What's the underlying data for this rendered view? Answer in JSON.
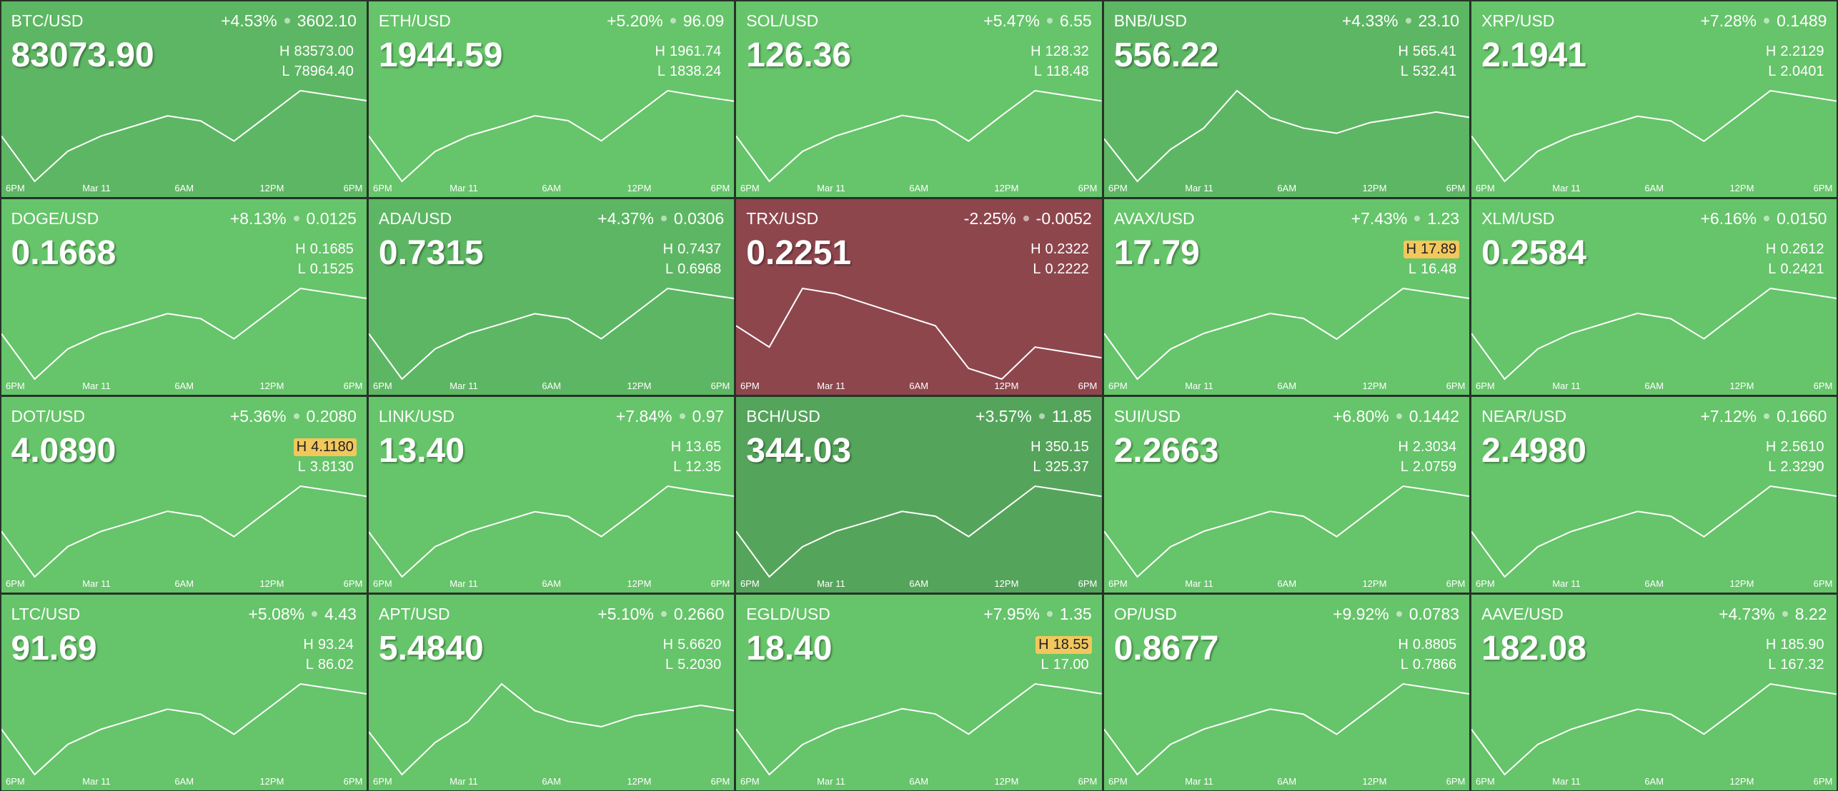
{
  "labels": {
    "high": "H",
    "low": "L"
  },
  "time_labels": [
    "6PM",
    "Mar 11",
    "6AM",
    "12PM",
    "6PM"
  ],
  "tiles": [
    {
      "pair": "BTC/USD",
      "change_pct": "+4.53%",
      "change": "3602.10",
      "price": "83073.90",
      "high": "83573.00",
      "low": "78964.40",
      "color": "#5db663",
      "highlight": false,
      "sparkline": [
        81268,
        79195,
        80577,
        81268,
        81730,
        82191,
        81960,
        81038,
        82191,
        83343,
        83112,
        82882
      ]
    },
    {
      "pair": "ETH/USD",
      "change_pct": "+5.20%",
      "change": "96.09",
      "price": "1944.59",
      "high": "1961.74",
      "low": "1838.24",
      "color": "#66c46a",
      "highlight": false,
      "sparkline": [
        1900,
        1844,
        1881,
        1900,
        1912,
        1925,
        1919,
        1894,
        1925,
        1956,
        1949,
        1943
      ]
    },
    {
      "pair": "SOL/USD",
      "change_pct": "+5.47%",
      "change": "6.55",
      "price": "126.36",
      "high": "128.32",
      "low": "118.48",
      "color": "#66c46a",
      "highlight": false,
      "sparkline": [
        123.4,
        119.0,
        121.9,
        123.4,
        124.4,
        125.4,
        124.9,
        122.9,
        125.4,
        127.8,
        127.3,
        126.8
      ]
    },
    {
      "pair": "BNB/USD",
      "change_pct": "+4.33%",
      "change": "23.10",
      "price": "556.22",
      "high": "565.41",
      "low": "532.41",
      "color": "#5db663",
      "highlight": false,
      "sparkline": [
        548.9,
        535.7,
        545.6,
        552.2,
        563.8,
        555.5,
        552.2,
        550.6,
        553.9,
        555.5,
        557.2,
        555.5
      ]
    },
    {
      "pair": "XRP/USD",
      "change_pct": "+7.28%",
      "change": "0.1489",
      "price": "2.1941",
      "high": "2.2129",
      "low": "2.0401",
      "color": "#66c46a",
      "highlight": false,
      "sparkline": [
        2.127,
        2.049,
        2.101,
        2.127,
        2.144,
        2.161,
        2.153,
        2.118,
        2.161,
        2.205,
        2.196,
        2.187
      ]
    },
    {
      "pair": "DOGE/USD",
      "change_pct": "+8.13%",
      "change": "0.0125",
      "price": "0.1668",
      "high": "0.1685",
      "low": "0.1525",
      "color": "#66c46a",
      "highlight": false,
      "sparkline": [
        0.1605,
        0.1533,
        0.1581,
        0.1605,
        0.1621,
        0.1637,
        0.1629,
        0.1597,
        0.1637,
        0.1677,
        0.1669,
        0.1661
      ]
    },
    {
      "pair": "ADA/USD",
      "change_pct": "+4.37%",
      "change": "0.0306",
      "price": "0.7315",
      "high": "0.7437",
      "low": "0.6968",
      "color": "#5db663",
      "highlight": false,
      "sparkline": [
        0.7203,
        0.6991,
        0.7132,
        0.7203,
        0.7249,
        0.7296,
        0.7273,
        0.7179,
        0.7296,
        0.7414,
        0.739,
        0.7367
      ]
    },
    {
      "pair": "TRX/USD",
      "change_pct": "-2.25%",
      "change": "-0.0052",
      "price": "0.2251",
      "high": "0.2322",
      "low": "0.2222",
      "color": "#8e464d",
      "highlight": false,
      "sparkline": [
        0.2272,
        0.2252,
        0.2307,
        0.2302,
        0.2292,
        0.2282,
        0.2272,
        0.2232,
        0.2222,
        0.2252,
        0.2247,
        0.2242
      ]
    },
    {
      "pair": "AVAX/USD",
      "change_pct": "+7.43%",
      "change": "1.23",
      "price": "17.79",
      "high": "17.89",
      "low": "16.48",
      "color": "#66c46a",
      "highlight": true,
      "sparkline": [
        17.19,
        16.55,
        16.97,
        17.19,
        17.33,
        17.47,
        17.4,
        17.11,
        17.47,
        17.82,
        17.75,
        17.68
      ]
    },
    {
      "pair": "XLM/USD",
      "change_pct": "+6.16%",
      "change": "0.0150",
      "price": "0.2584",
      "high": "0.2612",
      "low": "0.2421",
      "color": "#66c46a",
      "highlight": false,
      "sparkline": [
        0.2517,
        0.2431,
        0.2488,
        0.2517,
        0.2536,
        0.2555,
        0.2545,
        0.2507,
        0.2555,
        0.2602,
        0.2593,
        0.2583
      ]
    },
    {
      "pair": "DOT/USD",
      "change_pct": "+5.36%",
      "change": "0.2080",
      "price": "4.0890",
      "high": "4.1180",
      "low": "3.8130",
      "color": "#66c46a",
      "highlight": true,
      "sparkline": [
        3.966,
        3.828,
        3.92,
        3.966,
        3.996,
        4.027,
        4.011,
        3.95,
        4.027,
        4.103,
        4.088,
        4.072
      ]
    },
    {
      "pair": "LINK/USD",
      "change_pct": "+7.84%",
      "change": "0.97",
      "price": "13.40",
      "high": "13.65",
      "low": "12.35",
      "color": "#66c46a",
      "highlight": false,
      "sparkline": [
        13.0,
        12.42,
        12.81,
        13.0,
        13.13,
        13.26,
        13.2,
        12.94,
        13.26,
        13.59,
        13.52,
        13.46
      ]
    },
    {
      "pair": "BCH/USD",
      "change_pct": "+3.57%",
      "change": "11.85",
      "price": "344.03",
      "high": "350.15",
      "low": "325.37",
      "color": "#55a45b",
      "highlight": false,
      "sparkline": [
        337.8,
        326.6,
        334.0,
        337.8,
        340.2,
        342.7,
        341.5,
        336.5,
        342.7,
        348.9,
        347.7,
        346.4
      ]
    },
    {
      "pair": "SUI/USD",
      "change_pct": "+6.80%",
      "change": "0.1442",
      "price": "2.2663",
      "high": "2.3034",
      "low": "2.0759",
      "color": "#66c46a",
      "highlight": false,
      "sparkline": [
        2.19,
        2.087,
        2.155,
        2.19,
        2.212,
        2.235,
        2.224,
        2.178,
        2.235,
        2.292,
        2.281,
        2.269
      ]
    },
    {
      "pair": "NEAR/USD",
      "change_pct": "+7.12%",
      "change": "0.1660",
      "price": "2.4980",
      "high": "2.5610",
      "low": "2.3290",
      "color": "#66c46a",
      "highlight": false,
      "sparkline": [
        2.445,
        2.341,
        2.41,
        2.445,
        2.468,
        2.491,
        2.48,
        2.433,
        2.491,
        2.549,
        2.538,
        2.526
      ]
    },
    {
      "pair": "LTC/USD",
      "change_pct": "+5.08%",
      "change": "4.43",
      "price": "91.69",
      "high": "93.24",
      "low": "86.02",
      "color": "#66c46a",
      "highlight": false,
      "sparkline": [
        89.63,
        86.38,
        88.55,
        89.63,
        90.35,
        91.07,
        90.71,
        89.27,
        91.07,
        92.88,
        92.52,
        92.16
      ]
    },
    {
      "pair": "APT/USD",
      "change_pct": "+5.10%",
      "change": "0.2660",
      "price": "5.4840",
      "high": "5.6620",
      "low": "5.2030",
      "color": "#66c46a",
      "highlight": false,
      "sparkline": [
        5.433,
        5.249,
        5.387,
        5.478,
        5.639,
        5.524,
        5.478,
        5.455,
        5.501,
        5.524,
        5.547,
        5.524
      ]
    },
    {
      "pair": "EGLD/USD",
      "change_pct": "+7.95%",
      "change": "1.35",
      "price": "18.40",
      "high": "18.55",
      "low": "17.00",
      "color": "#66c46a",
      "highlight": true,
      "sparkline": [
        17.78,
        17.08,
        17.54,
        17.78,
        17.93,
        18.09,
        18.01,
        17.7,
        18.09,
        18.47,
        18.4,
        18.32
      ]
    },
    {
      "pair": "OP/USD",
      "change_pct": "+9.92%",
      "change": "0.0783",
      "price": "0.8677",
      "high": "0.8805",
      "low": "0.7866",
      "color": "#66c46a",
      "highlight": false,
      "sparkline": [
        0.8336,
        0.7913,
        0.8195,
        0.8336,
        0.8429,
        0.8523,
        0.8476,
        0.8289,
        0.8523,
        0.8758,
        0.8711,
        0.8664
      ]
    },
    {
      "pair": "AAVE/USD",
      "change_pct": "+4.73%",
      "change": "8.22",
      "price": "182.08",
      "high": "185.90",
      "low": "167.32",
      "color": "#66c46a",
      "highlight": false,
      "sparkline": [
        176.6,
        168.2,
        173.8,
        176.6,
        178.5,
        180.3,
        179.4,
        175.7,
        180.3,
        185.0,
        184.0,
        183.1
      ]
    }
  ]
}
